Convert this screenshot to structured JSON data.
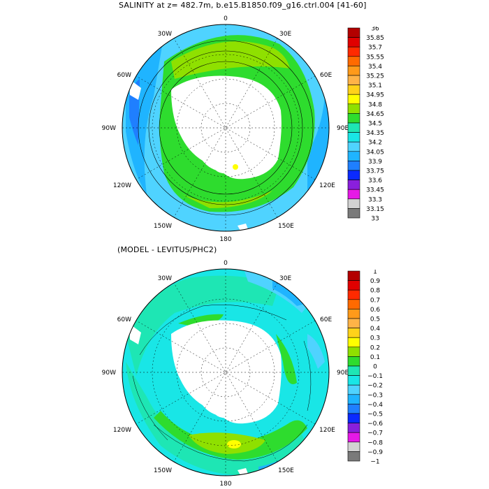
{
  "panels": [
    {
      "title": "SALINITY at z= 482.7m, b.e15.B1850.f09_g16.ctrl.004 [41-60]",
      "colorbar": {
        "labels": [
          "36",
          "35.85",
          "35.7",
          "35.55",
          "35.4",
          "35.25",
          "35.1",
          "34.95",
          "34.8",
          "34.65",
          "34.5",
          "34.35",
          "34.2",
          "34.05",
          "33.9",
          "33.75",
          "33.6",
          "33.45",
          "33.3",
          "33.15",
          "33"
        ],
        "colors": [
          "#b30000",
          "#e00000",
          "#ff2a00",
          "#ff6a00",
          "#ff9a1a",
          "#ffb347",
          "#ffd21a",
          "#ffff00",
          "#8fe000",
          "#2edc2e",
          "#1ee6b4",
          "#19e6e6",
          "#4fd3ff",
          "#1fb4ff",
          "#1f7fff",
          "#0a2aff",
          "#8a1fdc",
          "#e619e6",
          "#d2d2d2",
          "#7a7a7a"
        ]
      },
      "longitude_labels": [
        "0",
        "30E",
        "60E",
        "90E",
        "120E",
        "150E",
        "180",
        "150W",
        "120W",
        "90W",
        "60W",
        "30W"
      ]
    },
    {
      "title": "(MODEL - LEVITUS/PHC2)",
      "colorbar": {
        "labels": [
          "1",
          "0.9",
          "0.8",
          "0.7",
          "0.6",
          "0.5",
          "0.4",
          "0.3",
          "0.2",
          "0.1",
          "0",
          "−0.1",
          "−0.2",
          "−0.3",
          "−0.4",
          "−0.5",
          "−0.6",
          "−0.7",
          "−0.8",
          "−0.9",
          "−1"
        ],
        "colors": [
          "#b30000",
          "#e00000",
          "#ff2a00",
          "#ff6a00",
          "#ff9a1a",
          "#ffb347",
          "#ffd21a",
          "#ffff00",
          "#8fe000",
          "#2edc2e",
          "#1ee6b4",
          "#19e6e6",
          "#4fd3ff",
          "#1fb4ff",
          "#1f7fff",
          "#0a2aff",
          "#8a1fdc",
          "#e619e6",
          "#d2d2d2",
          "#7a7a7a"
        ]
      },
      "longitude_labels": [
        "0",
        "30E",
        "60E",
        "90E",
        "120E",
        "150E",
        "180",
        "150W",
        "120W",
        "90W",
        "60W",
        "30W"
      ]
    }
  ]
}
